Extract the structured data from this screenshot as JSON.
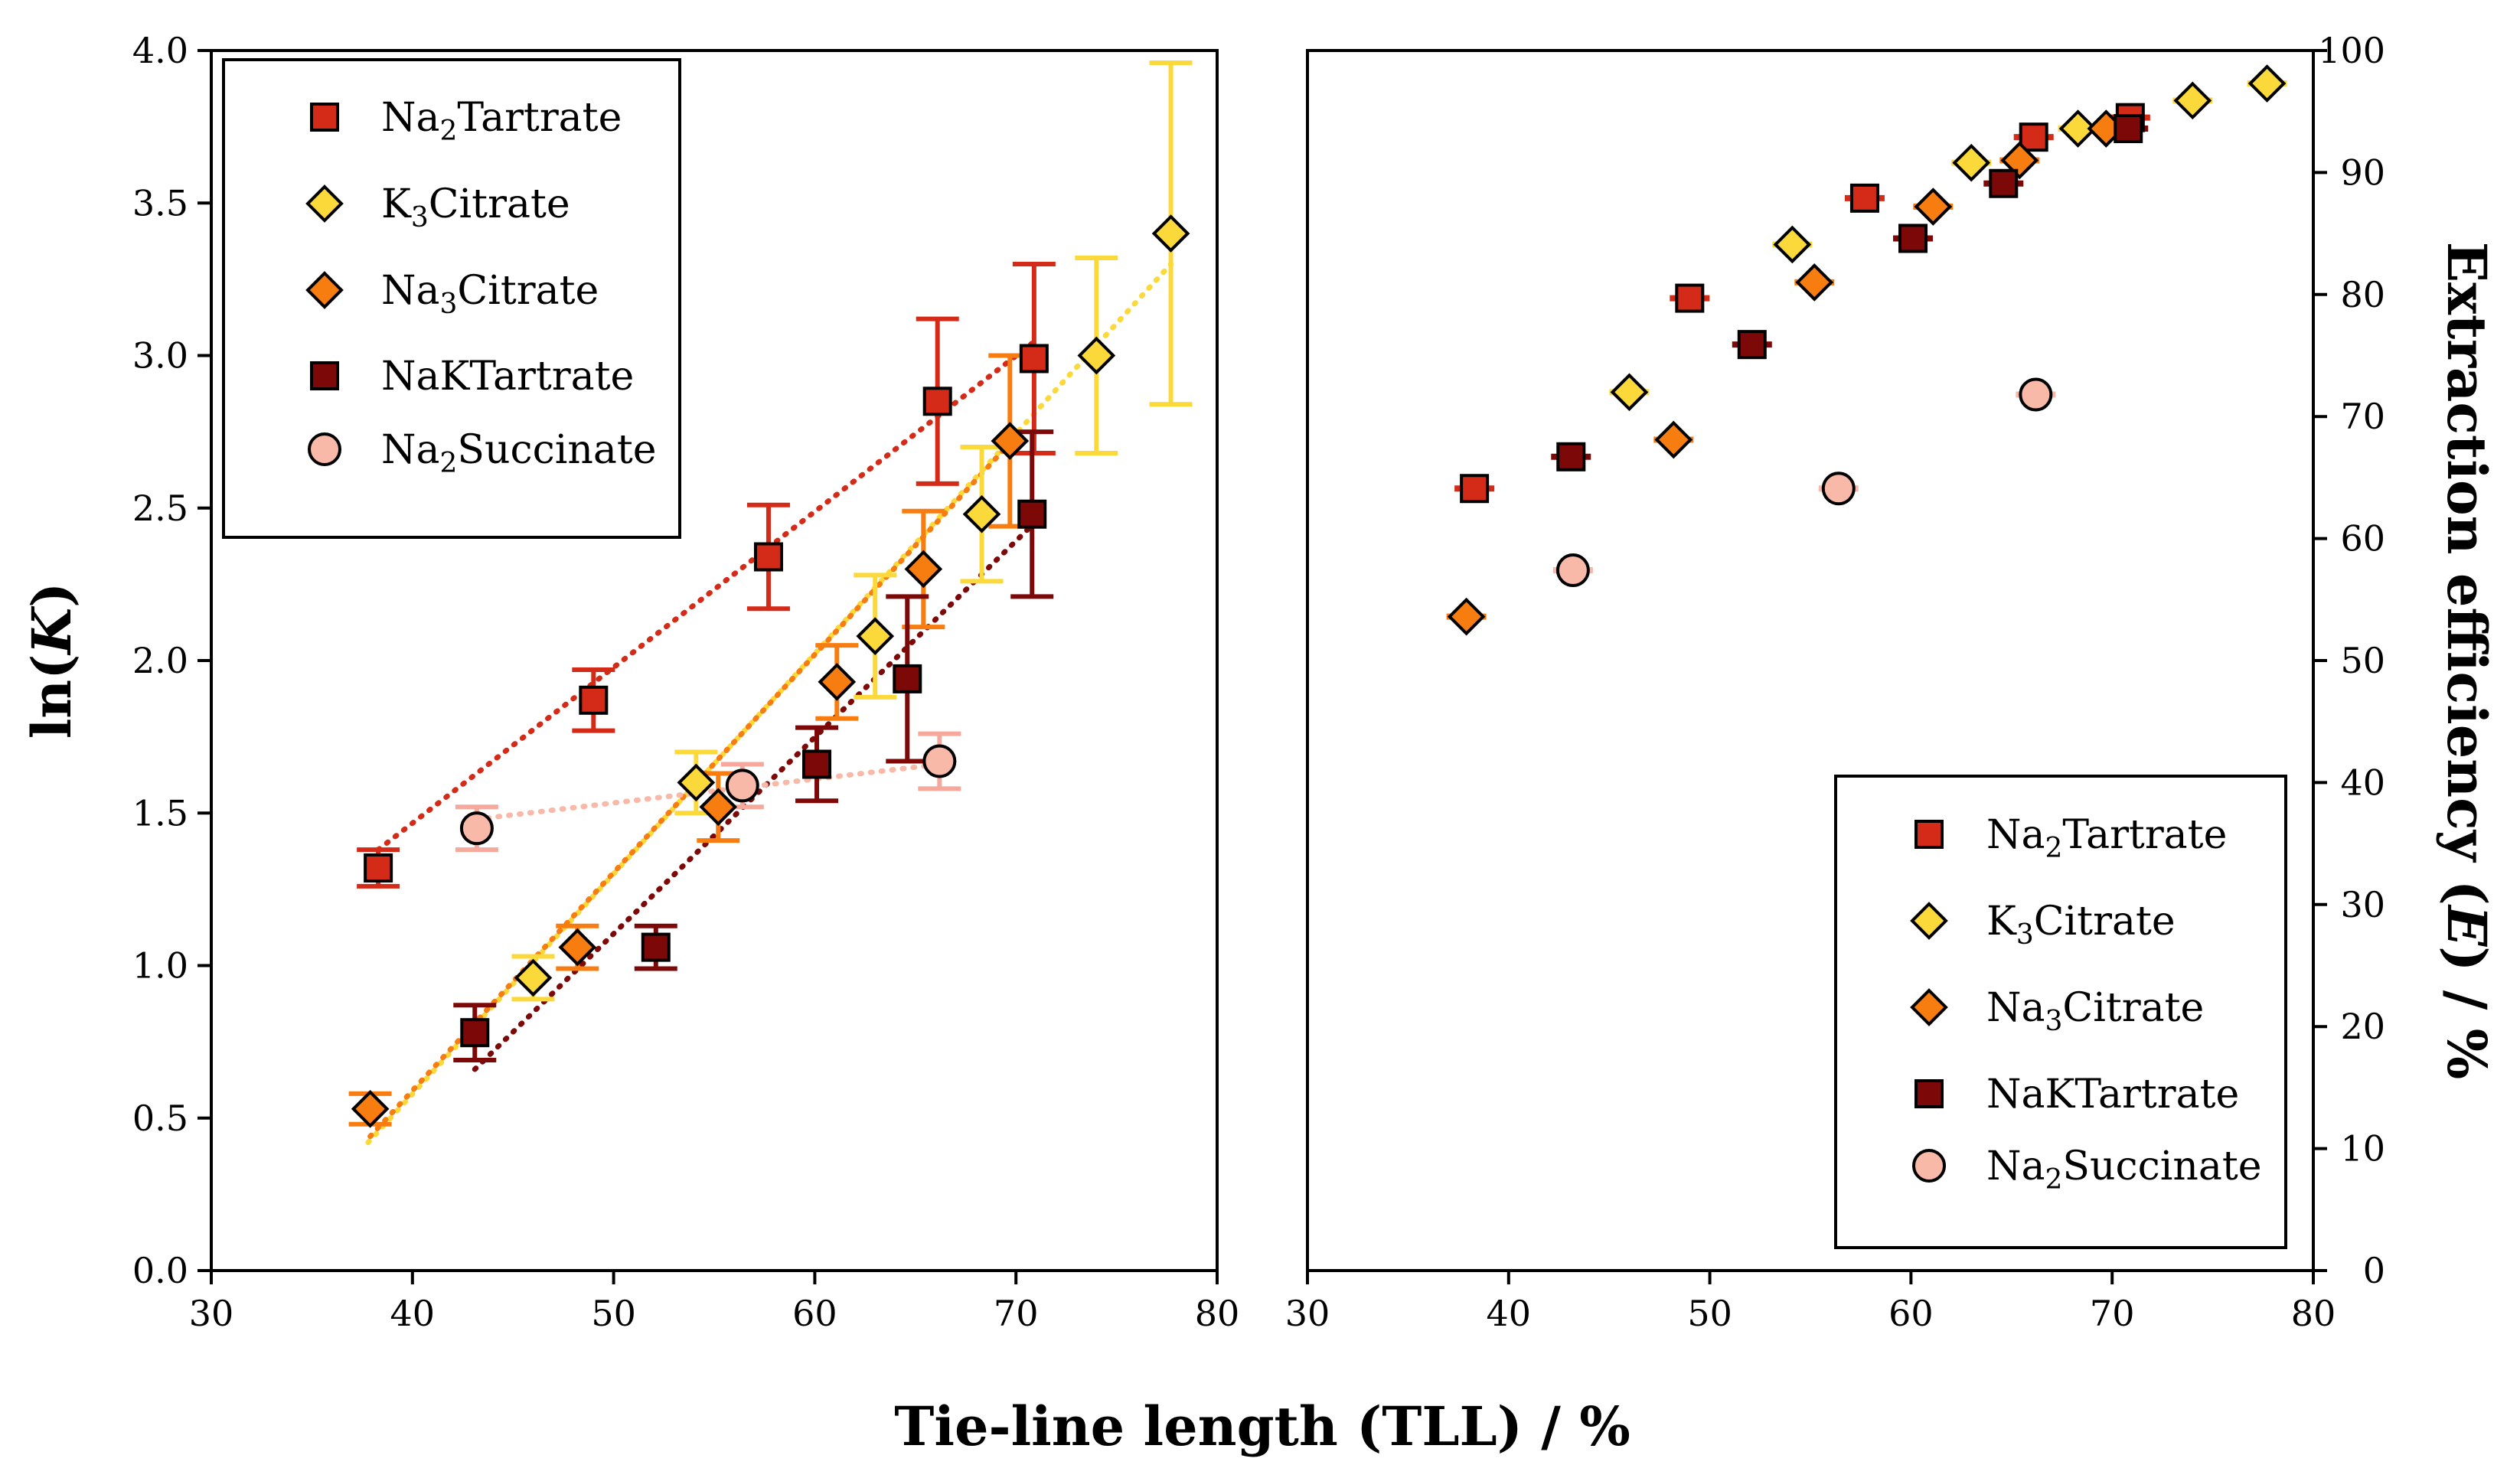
{
  "chart_data": [
    {
      "type": "scatter",
      "panel": "left",
      "xlabel": "Tie-line length (TLL) / %",
      "ylabel": "ln(K)",
      "xlim": [
        30,
        80
      ],
      "ylim": [
        0,
        4
      ],
      "xticks": [
        "30",
        "40",
        "50",
        "60",
        "70",
        "80"
      ],
      "yticks": [
        "0.0",
        "0.5",
        "1.0",
        "1.5",
        "2.0",
        "2.5",
        "3.0",
        "3.5",
        "4.0"
      ],
      "legend_position": "top-left",
      "legend_entries": [
        "Na2Tartrate",
        "K3Citrate",
        "Na3Citrate",
        "NaKTartrate",
        "Na2Succinate"
      ],
      "series": [
        {
          "name": "Na2Tartrate",
          "marker": "square",
          "color": "#d42a18",
          "errcolor": "#d42a18",
          "x": [
            38.3,
            49.0,
            57.7,
            66.1,
            70.9
          ],
          "y": [
            1.32,
            1.87,
            2.34,
            2.85,
            2.99
          ],
          "err": [
            0.06,
            0.1,
            0.17,
            0.27,
            0.31
          ],
          "fit": [
            [
              38.3,
              1.38
            ],
            [
              71.0,
              3.05
            ]
          ]
        },
        {
          "name": "K3Citrate",
          "marker": "diamond",
          "color": "#fcd93a",
          "errcolor": "#fcd93a",
          "x": [
            46.0,
            54.1,
            63.0,
            68.3,
            74.0,
            77.7
          ],
          "y": [
            0.96,
            1.6,
            2.08,
            2.48,
            3.0,
            3.4
          ],
          "err": [
            0.07,
            0.1,
            0.2,
            0.22,
            0.32,
            0.56
          ],
          "fit": [
            [
              37.8,
              0.42
            ],
            [
              77.7,
              3.3
            ]
          ]
        },
        {
          "name": "Na3Citrate",
          "marker": "diamond",
          "color": "#f77d10",
          "errcolor": "#f77d10",
          "x": [
            37.9,
            48.2,
            55.2,
            61.1,
            65.4,
            69.7
          ],
          "y": [
            0.53,
            1.06,
            1.52,
            1.93,
            2.3,
            2.72
          ],
          "err": [
            0.05,
            0.07,
            0.11,
            0.12,
            0.19,
            0.28
          ],
          "fit": [
            [
              37.9,
              0.44
            ],
            [
              69.8,
              2.72
            ]
          ]
        },
        {
          "name": "NaKTartrate",
          "marker": "square",
          "color": "#7d0808",
          "errcolor": "#7d0808",
          "x": [
            43.1,
            52.1,
            60.1,
            64.6,
            70.8
          ],
          "y": [
            0.78,
            1.06,
            1.66,
            1.94,
            2.48
          ],
          "err": [
            0.09,
            0.07,
            0.12,
            0.27,
            0.27
          ],
          "fit": [
            [
              43.1,
              0.66
            ],
            [
              70.9,
              2.45
            ]
          ]
        },
        {
          "name": "Na2Succinate",
          "marker": "circle",
          "color": "#f9b9a9",
          "errcolor": "#f4a99c",
          "x": [
            43.2,
            56.4,
            66.2
          ],
          "y": [
            1.45,
            1.59,
            1.67
          ],
          "err": [
            0.07,
            0.07,
            0.09
          ],
          "fit": [
            [
              43.2,
              1.48
            ],
            [
              66.2,
              1.66
            ]
          ]
        }
      ]
    },
    {
      "type": "scatter",
      "panel": "right",
      "xlabel": "Tie-line length (TLL) / %",
      "ylabel": "Extraction efficiency (E) / %",
      "xlim": [
        30,
        80
      ],
      "ylim": [
        0,
        100
      ],
      "xticks": [
        "30",
        "40",
        "50",
        "60",
        "70",
        "80"
      ],
      "yticks": [
        "0",
        "10",
        "20",
        "30",
        "40",
        "50",
        "60",
        "70",
        "80",
        "90",
        "100"
      ],
      "legend_position": "bottom-right",
      "legend_entries": [
        "Na2Tartrate",
        "K3Citrate",
        "Na3Citrate",
        "NaKTartrate",
        "Na2Succinate"
      ],
      "series": [
        {
          "name": "Na2Tartrate",
          "marker": "square",
          "color": "#d42a18",
          "x": [
            38.3,
            49.0,
            57.7,
            66.1,
            70.9
          ],
          "y": [
            64.1,
            79.7,
            87.9,
            92.9,
            94.5
          ]
        },
        {
          "name": "K3Citrate",
          "marker": "diamond",
          "color": "#fcd93a",
          "x": [
            46.0,
            54.1,
            63.0,
            68.3,
            74.0,
            77.7
          ],
          "y": [
            72.0,
            84.1,
            90.8,
            93.6,
            95.9,
            97.3
          ]
        },
        {
          "name": "Na3Citrate",
          "marker": "diamond",
          "color": "#f77d10",
          "x": [
            37.9,
            48.2,
            55.2,
            61.1,
            65.4,
            69.7
          ],
          "y": [
            53.6,
            68.1,
            81.0,
            87.2,
            91.0,
            93.6
          ]
        },
        {
          "name": "NaKTartrate",
          "marker": "square",
          "color": "#7d0808",
          "x": [
            43.1,
            52.1,
            60.1,
            64.6,
            70.8
          ],
          "y": [
            66.7,
            75.9,
            84.6,
            89.1,
            93.6
          ]
        },
        {
          "name": "Na2Succinate",
          "marker": "circle",
          "color": "#f9b9a9",
          "x": [
            43.2,
            56.4,
            66.2
          ],
          "y": [
            57.4,
            64.1,
            71.8
          ]
        }
      ]
    }
  ]
}
